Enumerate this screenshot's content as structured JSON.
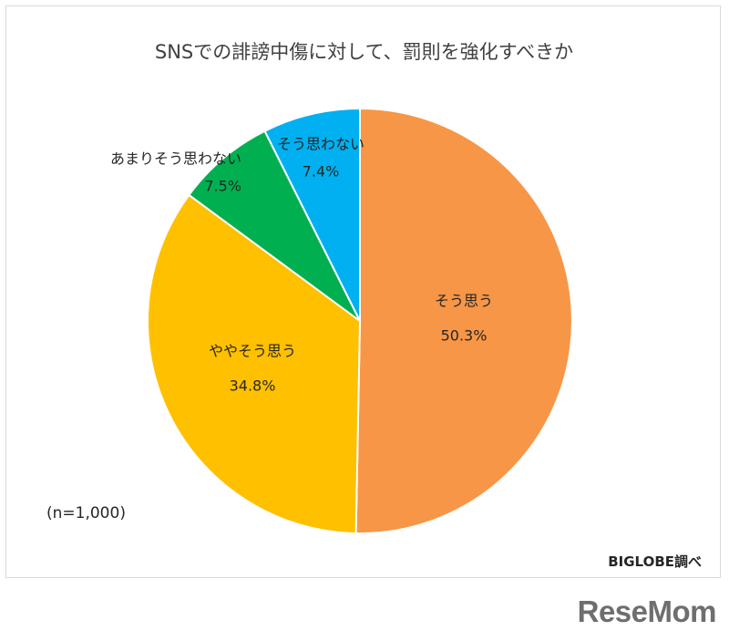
{
  "chart_data": {
    "type": "pie",
    "title": "SNSでの誹謗中傷に対して、罰則を強化すべきか",
    "slices": [
      {
        "label": "そう思う",
        "value": 50.3,
        "value_label": "50.3%",
        "color": "#F79646"
      },
      {
        "label": "ややそう思う",
        "value": 34.8,
        "value_label": "34.8%",
        "color": "#FFC000"
      },
      {
        "label": "あまりそう思わない",
        "value": 7.5,
        "value_label": "7.5%",
        "color": "#00B050"
      },
      {
        "label": "そう思わない",
        "value": 7.4,
        "value_label": "7.4%",
        "color": "#00B0F0"
      }
    ],
    "start": "12 o'clock",
    "direction": "clockwise",
    "legend": "none",
    "note": "(n=1,000)"
  },
  "source": "BIGLOBE調べ",
  "watermark": "ReseMom"
}
